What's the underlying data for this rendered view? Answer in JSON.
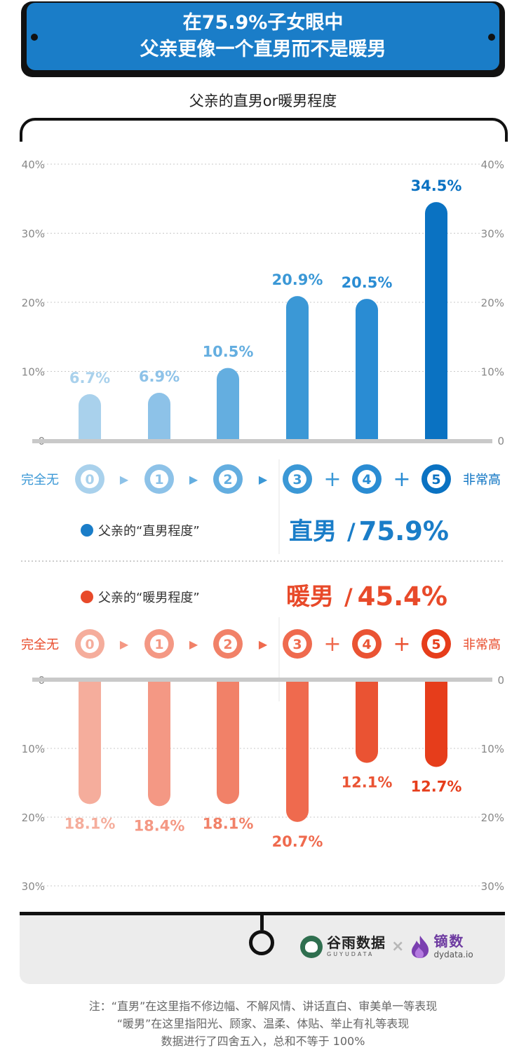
{
  "header": {
    "title_line1": "在75.9%子女眼中",
    "title_line2": "父亲更像一个直男而不是暖男"
  },
  "chart_title": "父亲的直男or暖男程度",
  "chart_data": [
    {
      "type": "bar",
      "name": "父亲的“直男程度”",
      "categories": [
        "0",
        "1",
        "2",
        "3",
        "4",
        "5"
      ],
      "values": [
        6.7,
        6.9,
        10.5,
        20.9,
        20.5,
        34.5
      ],
      "value_labels": [
        "6.7%",
        "6.9%",
        "10.5%",
        "20.9%",
        "20.5%",
        "34.5%"
      ],
      "ylim": [
        0,
        40
      ],
      "y_ticks": [
        "0",
        "10%",
        "20%",
        "30%",
        "40%"
      ],
      "scale_low": "完全无",
      "scale_high": "非常高",
      "summary_label": "直男",
      "summary_value": "75.9%",
      "colors": [
        "#a9d1ec",
        "#8dc2e8",
        "#64aee0",
        "#3b98d6",
        "#2a8cd3",
        "#0a72c2"
      ]
    },
    {
      "type": "bar",
      "name": "父亲的“暖男程度”",
      "categories": [
        "0",
        "1",
        "2",
        "3",
        "4",
        "5"
      ],
      "values": [
        18.1,
        18.4,
        18.1,
        20.7,
        12.1,
        12.7
      ],
      "value_labels": [
        "18.1%",
        "18.4%",
        "18.1%",
        "20.7%",
        "12.1%",
        "12.7%"
      ],
      "ylim": [
        0,
        30
      ],
      "y_ticks": [
        "0",
        "10%",
        "20%",
        "30%"
      ],
      "scale_low": "完全无",
      "scale_high": "非常高",
      "summary_label": "暖男",
      "summary_value": "45.4%",
      "colors": [
        "#f5ad9c",
        "#f49884",
        "#f18168",
        "#ef6a4e",
        "#ea5333",
        "#e63d1b"
      ]
    }
  ],
  "separators": {
    "chevron": "▶",
    "plus": "+",
    "slash": "/"
  },
  "brand": {
    "guyu_name": "谷雨数据",
    "guyu_sub": "GUYUDATA",
    "times": "×",
    "dydata_name": "镝数",
    "dydata_url": "dydata.io"
  },
  "notes": [
    "注：“直男”在这里指不修边幅、不解风情、讲话直白、审美单一等表现",
    "“暖男”在这里指阳光、顾家、温柔、体贴、举止有礼等表现",
    "数据进行了四舍五入，总和不等于 100%"
  ]
}
